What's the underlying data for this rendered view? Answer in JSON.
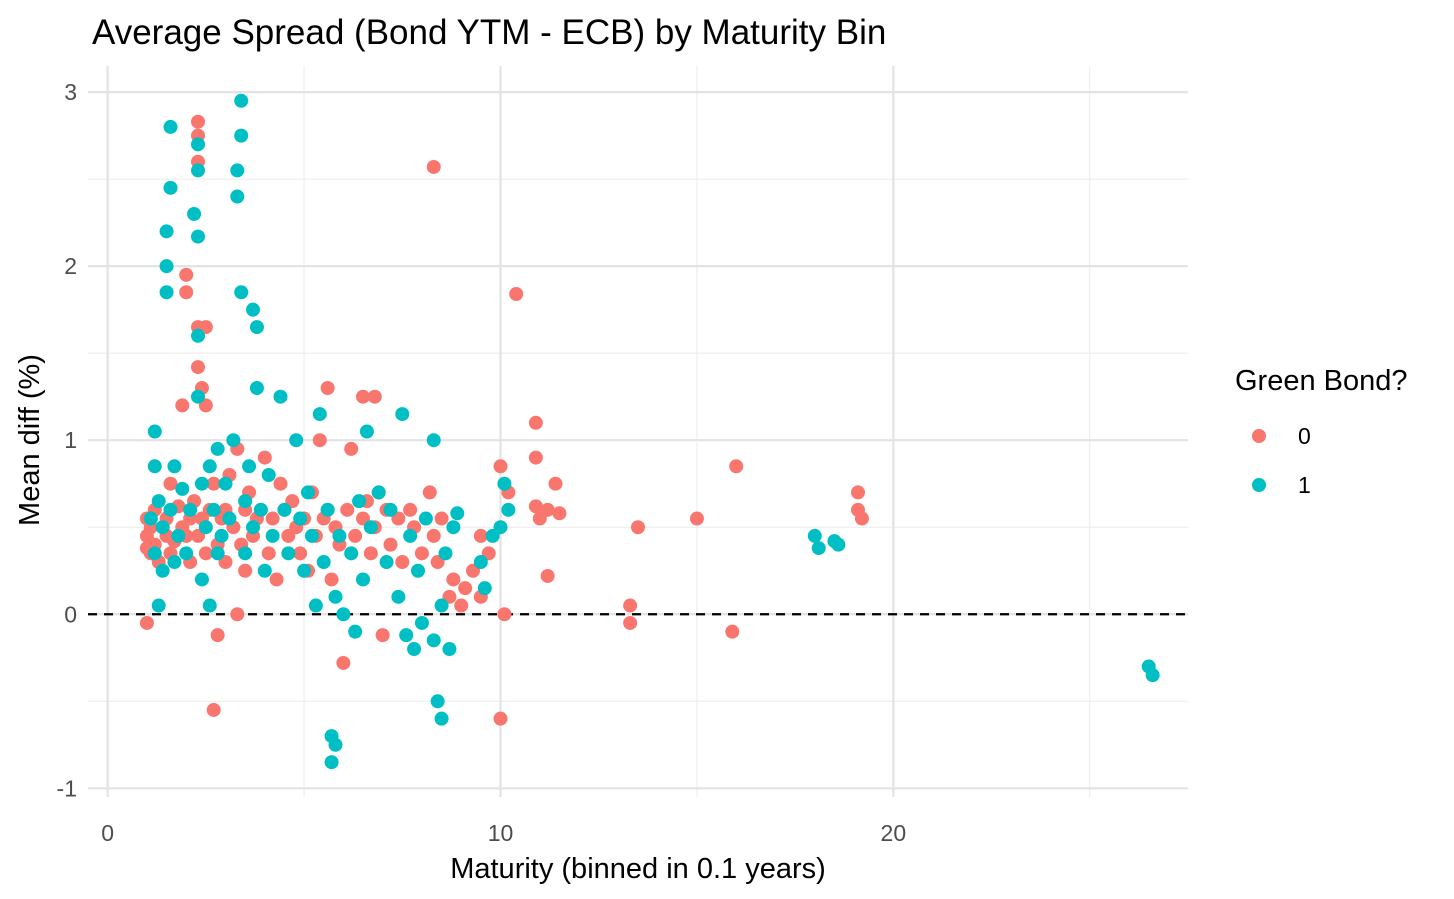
{
  "chart_data": {
    "type": "scatter",
    "title": "Average Spread (Bond YTM - ECB) by Maturity Bin",
    "xlabel": "Maturity (binned in 0.1 years)",
    "ylabel": "Mean diff (%)",
    "xlim": [
      -0.5,
      27.5
    ],
    "ylim": [
      -1.05,
      3.15
    ],
    "x_ticks": [
      0,
      10,
      20
    ],
    "x_tick_labels": [
      "0",
      "10",
      "20"
    ],
    "y_ticks": [
      -1,
      0,
      1,
      2,
      3
    ],
    "y_tick_labels": [
      "-1",
      "0",
      "1",
      "2",
      "3"
    ],
    "x_minor_ticks": [
      5,
      15,
      25
    ],
    "y_minor_ticks": [
      -0.5,
      0.5,
      1.5,
      2.5
    ],
    "grid": true,
    "reference_line": {
      "y": 0,
      "style": "dashed",
      "color": "#000000"
    },
    "legend": {
      "title": "Green Bond?",
      "position": "right",
      "entries": [
        {
          "label": "0",
          "color": "#F8766D"
        },
        {
          "label": "1",
          "color": "#00BFC4"
        }
      ]
    },
    "series": [
      {
        "name": "0",
        "color": "#F8766D",
        "points": [
          [
            1.0,
            0.45
          ],
          [
            1.0,
            0.55
          ],
          [
            1.0,
            0.38
          ],
          [
            1.0,
            -0.05
          ],
          [
            1.1,
            0.5
          ],
          [
            1.1,
            0.35
          ],
          [
            1.2,
            0.6
          ],
          [
            1.2,
            0.4
          ],
          [
            1.3,
            0.3
          ],
          [
            1.4,
            0.5
          ],
          [
            1.5,
            0.45
          ],
          [
            1.5,
            0.55
          ],
          [
            1.6,
            0.35
          ],
          [
            1.6,
            0.75
          ],
          [
            1.7,
            0.42
          ],
          [
            1.8,
            0.62
          ],
          [
            1.9,
            1.2
          ],
          [
            1.9,
            0.5
          ],
          [
            2.0,
            1.95
          ],
          [
            2.0,
            1.85
          ],
          [
            2.0,
            0.45
          ],
          [
            2.1,
            0.3
          ],
          [
            2.1,
            0.55
          ],
          [
            2.2,
            0.65
          ],
          [
            2.3,
            2.83
          ],
          [
            2.3,
            2.75
          ],
          [
            2.3,
            2.6
          ],
          [
            2.3,
            1.65
          ],
          [
            2.3,
            1.42
          ],
          [
            2.3,
            0.45
          ],
          [
            2.4,
            1.3
          ],
          [
            2.4,
            0.55
          ],
          [
            2.5,
            1.65
          ],
          [
            2.5,
            1.2
          ],
          [
            2.5,
            0.35
          ],
          [
            2.6,
            0.6
          ],
          [
            2.7,
            -0.55
          ],
          [
            2.7,
            0.75
          ],
          [
            2.8,
            -0.12
          ],
          [
            2.8,
            0.4
          ],
          [
            2.9,
            0.55
          ],
          [
            3.0,
            0.6
          ],
          [
            3.0,
            0.3
          ],
          [
            3.1,
            0.8
          ],
          [
            3.2,
            0.5
          ],
          [
            3.3,
            0.0
          ],
          [
            3.3,
            0.95
          ],
          [
            3.4,
            0.4
          ],
          [
            3.5,
            0.6
          ],
          [
            3.5,
            0.25
          ],
          [
            3.6,
            0.7
          ],
          [
            3.7,
            0.45
          ],
          [
            3.8,
            0.55
          ],
          [
            3.9,
            0.6
          ],
          [
            4.0,
            0.9
          ],
          [
            4.1,
            0.35
          ],
          [
            4.2,
            0.55
          ],
          [
            4.3,
            0.2
          ],
          [
            4.4,
            0.75
          ],
          [
            4.5,
            0.6
          ],
          [
            4.6,
            0.45
          ],
          [
            4.7,
            0.65
          ],
          [
            4.8,
            0.5
          ],
          [
            4.9,
            0.35
          ],
          [
            5.0,
            0.55
          ],
          [
            5.1,
            0.25
          ],
          [
            5.2,
            0.7
          ],
          [
            5.3,
            0.45
          ],
          [
            5.4,
            1.0
          ],
          [
            5.5,
            0.55
          ],
          [
            5.6,
            1.3
          ],
          [
            5.6,
            0.6
          ],
          [
            5.7,
            0.2
          ],
          [
            5.8,
            0.5
          ],
          [
            5.9,
            0.4
          ],
          [
            6.0,
            -0.28
          ],
          [
            6.1,
            0.6
          ],
          [
            6.2,
            0.95
          ],
          [
            6.3,
            0.45
          ],
          [
            6.5,
            1.25
          ],
          [
            6.5,
            0.55
          ],
          [
            6.6,
            0.65
          ],
          [
            6.7,
            0.35
          ],
          [
            6.8,
            1.25
          ],
          [
            6.8,
            0.5
          ],
          [
            6.9,
            0.7
          ],
          [
            7.0,
            -0.12
          ],
          [
            7.1,
            0.6
          ],
          [
            7.2,
            0.4
          ],
          [
            7.4,
            0.55
          ],
          [
            7.5,
            0.3
          ],
          [
            7.7,
            0.6
          ],
          [
            7.8,
            0.5
          ],
          [
            8.0,
            0.35
          ],
          [
            8.2,
            0.7
          ],
          [
            8.3,
            2.57
          ],
          [
            8.3,
            0.45
          ],
          [
            8.4,
            0.3
          ],
          [
            8.5,
            0.55
          ],
          [
            8.7,
            0.1
          ],
          [
            8.8,
            0.2
          ],
          [
            9.0,
            0.05
          ],
          [
            9.1,
            0.15
          ],
          [
            9.3,
            0.25
          ],
          [
            9.5,
            0.45
          ],
          [
            9.5,
            0.1
          ],
          [
            9.7,
            0.35
          ],
          [
            10.0,
            0.85
          ],
          [
            10.0,
            -0.6
          ],
          [
            10.1,
            0.0
          ],
          [
            10.2,
            0.7
          ],
          [
            10.4,
            1.84
          ],
          [
            10.9,
            1.1
          ],
          [
            10.9,
            0.9
          ],
          [
            10.9,
            0.62
          ],
          [
            11.0,
            0.55
          ],
          [
            11.2,
            0.6
          ],
          [
            11.2,
            0.22
          ],
          [
            11.4,
            0.75
          ],
          [
            11.5,
            0.58
          ],
          [
            13.3,
            0.05
          ],
          [
            13.3,
            -0.05
          ],
          [
            13.5,
            0.5
          ],
          [
            15.0,
            0.55
          ],
          [
            15.9,
            -0.1
          ],
          [
            16.0,
            0.85
          ],
          [
            19.1,
            0.6
          ],
          [
            19.1,
            0.7
          ],
          [
            19.2,
            0.55
          ]
        ]
      },
      {
        "name": "1",
        "color": "#00BFC4",
        "points": [
          [
            1.1,
            0.55
          ],
          [
            1.2,
            1.05
          ],
          [
            1.2,
            0.85
          ],
          [
            1.2,
            0.35
          ],
          [
            1.3,
            0.05
          ],
          [
            1.3,
            0.65
          ],
          [
            1.4,
            0.5
          ],
          [
            1.4,
            0.25
          ],
          [
            1.5,
            2.2
          ],
          [
            1.5,
            2.0
          ],
          [
            1.5,
            1.85
          ],
          [
            1.6,
            2.45
          ],
          [
            1.6,
            2.8
          ],
          [
            1.6,
            0.6
          ],
          [
            1.7,
            0.85
          ],
          [
            1.7,
            0.3
          ],
          [
            1.8,
            0.45
          ],
          [
            1.9,
            0.72
          ],
          [
            2.0,
            0.35
          ],
          [
            2.1,
            0.6
          ],
          [
            2.2,
            2.3
          ],
          [
            2.3,
            2.55
          ],
          [
            2.3,
            2.7
          ],
          [
            2.3,
            2.17
          ],
          [
            2.3,
            1.6
          ],
          [
            2.3,
            1.25
          ],
          [
            2.4,
            0.75
          ],
          [
            2.4,
            0.2
          ],
          [
            2.5,
            0.5
          ],
          [
            2.6,
            0.85
          ],
          [
            2.6,
            0.05
          ],
          [
            2.7,
            0.6
          ],
          [
            2.8,
            0.95
          ],
          [
            2.8,
            0.35
          ],
          [
            2.9,
            0.45
          ],
          [
            3.0,
            0.75
          ],
          [
            3.1,
            0.55
          ],
          [
            3.2,
            1.0
          ],
          [
            3.3,
            2.55
          ],
          [
            3.3,
            2.4
          ],
          [
            3.4,
            2.95
          ],
          [
            3.4,
            2.75
          ],
          [
            3.4,
            1.85
          ],
          [
            3.5,
            0.65
          ],
          [
            3.5,
            0.35
          ],
          [
            3.6,
            0.85
          ],
          [
            3.7,
            1.75
          ],
          [
            3.7,
            0.5
          ],
          [
            3.8,
            1.65
          ],
          [
            3.8,
            1.3
          ],
          [
            3.9,
            0.6
          ],
          [
            4.0,
            0.25
          ],
          [
            4.1,
            0.8
          ],
          [
            4.2,
            0.45
          ],
          [
            4.4,
            1.25
          ],
          [
            4.5,
            0.6
          ],
          [
            4.6,
            0.35
          ],
          [
            4.8,
            1.0
          ],
          [
            4.9,
            0.55
          ],
          [
            5.0,
            0.25
          ],
          [
            5.1,
            0.7
          ],
          [
            5.2,
            0.45
          ],
          [
            5.3,
            0.05
          ],
          [
            5.4,
            1.15
          ],
          [
            5.5,
            0.3
          ],
          [
            5.6,
            0.6
          ],
          [
            5.7,
            -0.7
          ],
          [
            5.7,
            -0.85
          ],
          [
            5.8,
            -0.75
          ],
          [
            5.8,
            0.1
          ],
          [
            5.9,
            0.45
          ],
          [
            6.0,
            0.0
          ],
          [
            6.2,
            0.35
          ],
          [
            6.3,
            -0.1
          ],
          [
            6.4,
            0.65
          ],
          [
            6.5,
            0.2
          ],
          [
            6.6,
            1.05
          ],
          [
            6.7,
            0.5
          ],
          [
            6.9,
            0.7
          ],
          [
            7.1,
            0.3
          ],
          [
            7.2,
            0.6
          ],
          [
            7.4,
            0.1
          ],
          [
            7.5,
            1.15
          ],
          [
            7.6,
            -0.12
          ],
          [
            7.7,
            0.45
          ],
          [
            7.8,
            -0.2
          ],
          [
            7.9,
            0.25
          ],
          [
            8.0,
            -0.05
          ],
          [
            8.1,
            0.55
          ],
          [
            8.3,
            1.0
          ],
          [
            8.3,
            -0.15
          ],
          [
            8.4,
            -0.5
          ],
          [
            8.5,
            -0.6
          ],
          [
            8.5,
            0.05
          ],
          [
            8.6,
            0.35
          ],
          [
            8.7,
            -0.2
          ],
          [
            8.8,
            0.5
          ],
          [
            8.9,
            0.58
          ],
          [
            9.5,
            0.3
          ],
          [
            9.6,
            0.15
          ],
          [
            9.8,
            0.45
          ],
          [
            10.0,
            0.5
          ],
          [
            10.1,
            0.75
          ],
          [
            10.2,
            0.6
          ],
          [
            18.0,
            0.45
          ],
          [
            18.1,
            0.38
          ],
          [
            18.5,
            0.42
          ],
          [
            18.6,
            0.4
          ],
          [
            26.5,
            -0.3
          ],
          [
            26.6,
            -0.35
          ]
        ]
      }
    ]
  }
}
